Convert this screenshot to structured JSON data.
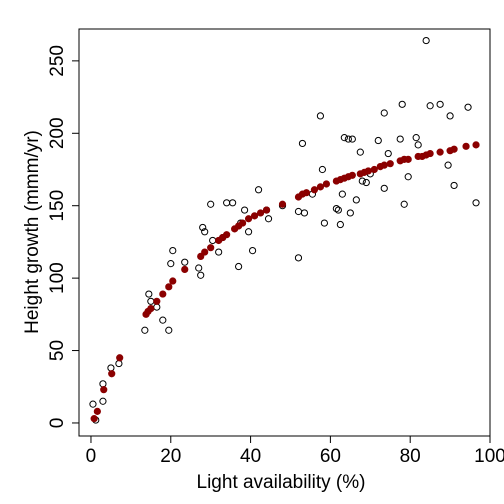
{
  "chart_data": {
    "type": "scatter",
    "title": "",
    "xlabel": "Light availability (%)",
    "ylabel": "Height growth (mmm/yr)",
    "xlim": [
      -3,
      100
    ],
    "ylim": [
      -9,
      272
    ],
    "x_ticks": [
      0,
      20,
      40,
      60,
      80,
      100
    ],
    "y_ticks": [
      0,
      50,
      100,
      150,
      200,
      250
    ],
    "grid": false,
    "legend": "none",
    "series": [
      {
        "style": "open-circle",
        "color": "#000000",
        "points": [
          [
            0.5,
            13
          ],
          [
            1.2,
            2
          ],
          [
            3,
            27
          ],
          [
            3,
            15
          ],
          [
            5,
            38
          ],
          [
            7,
            41
          ],
          [
            13.5,
            64
          ],
          [
            14.5,
            89
          ],
          [
            15,
            84
          ],
          [
            16.5,
            80
          ],
          [
            18,
            71
          ],
          [
            19.5,
            64
          ],
          [
            20,
            110
          ],
          [
            20.5,
            119
          ],
          [
            23.5,
            111
          ],
          [
            27,
            107
          ],
          [
            27.5,
            102
          ],
          [
            28,
            135
          ],
          [
            28.5,
            132
          ],
          [
            30,
            151
          ],
          [
            30.5,
            126
          ],
          [
            32,
            118
          ],
          [
            33,
            128
          ],
          [
            34,
            152
          ],
          [
            35.5,
            152
          ],
          [
            37,
            108
          ],
          [
            37.5,
            138
          ],
          [
            38.5,
            147
          ],
          [
            39.5,
            132
          ],
          [
            40.5,
            119
          ],
          [
            42,
            161
          ],
          [
            44,
            147
          ],
          [
            44.5,
            141
          ],
          [
            48,
            150
          ],
          [
            52,
            114
          ],
          [
            52,
            146
          ],
          [
            53,
            193
          ],
          [
            53.5,
            145
          ],
          [
            55.5,
            158
          ],
          [
            57.5,
            212
          ],
          [
            58,
            175
          ],
          [
            58.5,
            138
          ],
          [
            61.5,
            148
          ],
          [
            62,
            147
          ],
          [
            62.5,
            137
          ],
          [
            63,
            158
          ],
          [
            63.5,
            197
          ],
          [
            64.5,
            196
          ],
          [
            65,
            145
          ],
          [
            65.5,
            196
          ],
          [
            66.5,
            154
          ],
          [
            67.5,
            187
          ],
          [
            68,
            167
          ],
          [
            69,
            166
          ],
          [
            70,
            172
          ],
          [
            72,
            195
          ],
          [
            73.5,
            162
          ],
          [
            73.5,
            214
          ],
          [
            74.5,
            186
          ],
          [
            77.5,
            196
          ],
          [
            78,
            220
          ],
          [
            78.5,
            151
          ],
          [
            79.5,
            170
          ],
          [
            81.5,
            197
          ],
          [
            82,
            192
          ],
          [
            84,
            264
          ],
          [
            85,
            219
          ],
          [
            87.5,
            220
          ],
          [
            89.5,
            178
          ],
          [
            90,
            212
          ],
          [
            91,
            164
          ],
          [
            94.5,
            218
          ],
          [
            96.5,
            152
          ]
        ]
      },
      {
        "style": "filled-circle",
        "color": "#8b0000",
        "points": [
          [
            0.8,
            3
          ],
          [
            1.6,
            8
          ],
          [
            3.2,
            23
          ],
          [
            5.2,
            34
          ],
          [
            7.2,
            45
          ],
          [
            13.8,
            75
          ],
          [
            14.3,
            77
          ],
          [
            15,
            79
          ],
          [
            16.5,
            84
          ],
          [
            18,
            89
          ],
          [
            19.5,
            94
          ],
          [
            20.5,
            98
          ],
          [
            23.5,
            106
          ],
          [
            27.5,
            115
          ],
          [
            28.5,
            118
          ],
          [
            30,
            121
          ],
          [
            32,
            126
          ],
          [
            33,
            128
          ],
          [
            34,
            130
          ],
          [
            36,
            134
          ],
          [
            37,
            136
          ],
          [
            38,
            138
          ],
          [
            39.5,
            141
          ],
          [
            41,
            143
          ],
          [
            42.5,
            145
          ],
          [
            44,
            147
          ],
          [
            48,
            151
          ],
          [
            52,
            156
          ],
          [
            53,
            158
          ],
          [
            54,
            159
          ],
          [
            56,
            161
          ],
          [
            57.5,
            163
          ],
          [
            59,
            165
          ],
          [
            61.5,
            167
          ],
          [
            62.5,
            168
          ],
          [
            63.5,
            169
          ],
          [
            64.5,
            170
          ],
          [
            65.5,
            171
          ],
          [
            67.5,
            172
          ],
          [
            68.5,
            173
          ],
          [
            69.5,
            174
          ],
          [
            71,
            175
          ],
          [
            72.5,
            177
          ],
          [
            73.5,
            178
          ],
          [
            75,
            179
          ],
          [
            77.5,
            181
          ],
          [
            78.5,
            182
          ],
          [
            79.5,
            182
          ],
          [
            82,
            184
          ],
          [
            83,
            184
          ],
          [
            84,
            185
          ],
          [
            85,
            186
          ],
          [
            87.5,
            187
          ],
          [
            90,
            188
          ],
          [
            91,
            189
          ],
          [
            94,
            191
          ],
          [
            96.5,
            192
          ]
        ]
      }
    ]
  }
}
